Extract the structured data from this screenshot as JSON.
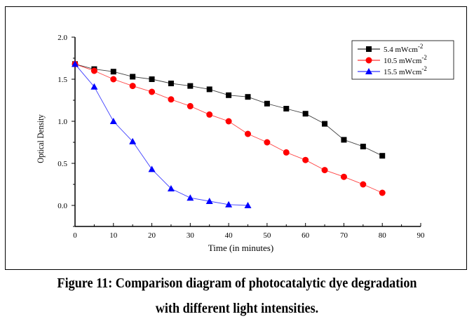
{
  "chart_data": {
    "type": "line",
    "title": "",
    "xlabel": "Time (in minutes)",
    "ylabel": "Optical Density",
    "xlim": [
      0,
      90
    ],
    "ylim": [
      -0.25,
      2.0
    ],
    "xticks": [
      0,
      10,
      20,
      30,
      40,
      50,
      60,
      70,
      80,
      90
    ],
    "xtick_labels": [
      "0",
      "10",
      "20",
      "30",
      "40",
      "50",
      "60",
      "70",
      "80",
      "90"
    ],
    "yticks": [
      0.0,
      0.5,
      1.0,
      1.5,
      2.0
    ],
    "ytick_labels": [
      "0.0",
      "0.5",
      "1.0",
      "1.5",
      "2.0"
    ],
    "grid": false,
    "legend_position": "top-right",
    "series": [
      {
        "name": "5.4 mWcm",
        "name_superscript": "-2",
        "color": "#000000",
        "marker": "square",
        "x": [
          0,
          5,
          10,
          15,
          20,
          25,
          30,
          35,
          40,
          45,
          50,
          55,
          60,
          65,
          70,
          75,
          80
        ],
        "values": [
          1.68,
          1.62,
          1.59,
          1.53,
          1.5,
          1.45,
          1.42,
          1.38,
          1.31,
          1.29,
          1.21,
          1.15,
          1.09,
          0.97,
          0.78,
          0.7,
          0.59
        ]
      },
      {
        "name": "10.5 mWcm",
        "name_superscript": "-2",
        "color": "#ff0000",
        "marker": "circle",
        "x": [
          0,
          5,
          10,
          15,
          20,
          25,
          30,
          35,
          40,
          45,
          50,
          55,
          60,
          65,
          70,
          75,
          80
        ],
        "values": [
          1.68,
          1.6,
          1.5,
          1.42,
          1.35,
          1.26,
          1.18,
          1.08,
          1.0,
          0.85,
          0.75,
          0.63,
          0.54,
          0.42,
          0.34,
          0.25,
          0.15
        ]
      },
      {
        "name": "15.5 mWcm",
        "name_superscript": "-2",
        "color": "#0000ff",
        "marker": "triangle",
        "x": [
          0,
          5,
          10,
          15,
          20,
          25,
          30,
          35,
          40,
          45
        ],
        "values": [
          1.68,
          1.41,
          1.0,
          0.76,
          0.43,
          0.2,
          0.09,
          0.05,
          0.01,
          0.0
        ]
      }
    ]
  },
  "caption": {
    "line1": "Figure 11: Comparison diagram of photocatalytic dye degradation",
    "line2": "with different light intensities."
  }
}
